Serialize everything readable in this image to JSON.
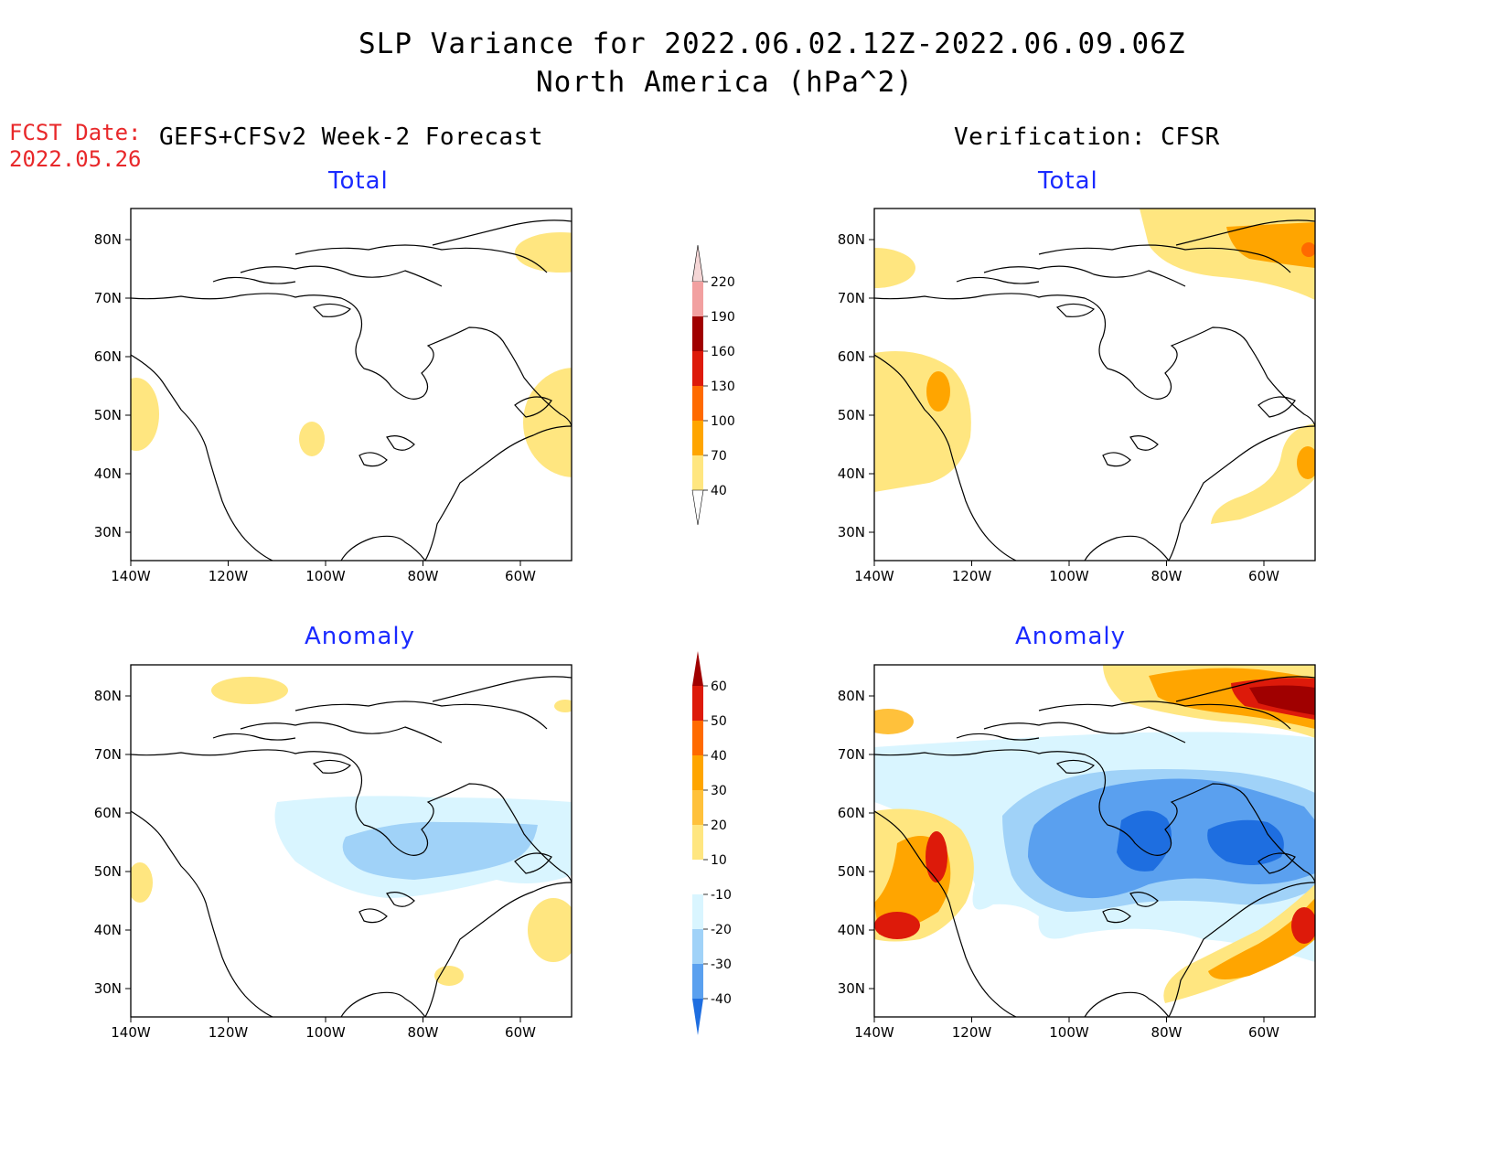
{
  "header": {
    "title_line1": "SLP Variance for 2022.06.02.12Z-2022.06.09.06Z",
    "title_line2": "North America (hPa^2)",
    "fcst_label": "FCST Date:",
    "fcst_date": "2022.05.26",
    "left_header": "GEFS+CFSv2 Week-2 Forecast",
    "right_header": "Verification: CFSR"
  },
  "panels": [
    {
      "id": "forecast-total",
      "title": "Total"
    },
    {
      "id": "verification-total",
      "title": "Total"
    },
    {
      "id": "forecast-anomaly",
      "title": "Anomaly"
    },
    {
      "id": "verification-anomaly",
      "title": "Anomaly"
    }
  ],
  "map_axes": {
    "lon_ticks": [
      "140W",
      "120W",
      "100W",
      "80W",
      "60W"
    ],
    "lat_ticks": [
      "80N",
      "70N",
      "60N",
      "50N",
      "40N",
      "30N"
    ]
  },
  "colorbars": {
    "total": {
      "levels": [
        "220",
        "190",
        "160",
        "130",
        "100",
        "70",
        "40"
      ],
      "colors": [
        "#f5d6d6",
        "#f2a0a0",
        "#a00000",
        "#dd1a0a",
        "#ff6a00",
        "#ffa500",
        "#ffe680"
      ]
    },
    "anomaly": {
      "levels": [
        "60",
        "50",
        "40",
        "30",
        "20",
        "10",
        "-10",
        "-20",
        "-30",
        "-40"
      ],
      "colors": [
        "#a00000",
        "#dd1a0a",
        "#ff6a00",
        "#ffa500",
        "#ffc13b",
        "#ffe680",
        "#ffffff",
        "#d9f5ff",
        "#a0d2f8",
        "#5aa0ef",
        "#1e6ee0"
      ]
    }
  }
}
